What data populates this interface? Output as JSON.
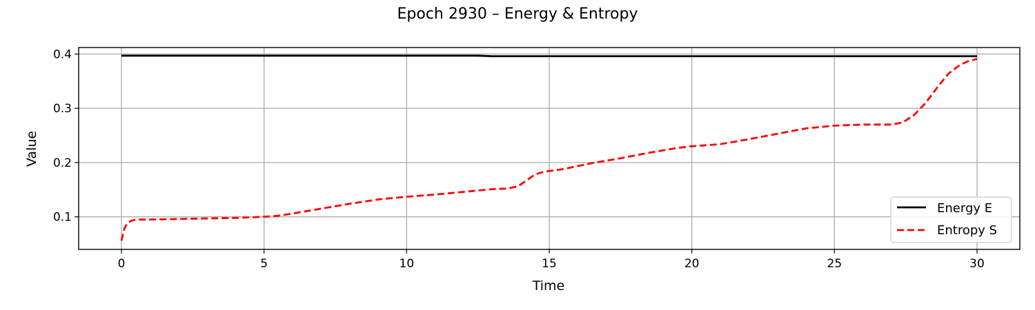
{
  "chart_data": {
    "type": "line",
    "title": "Epoch 2930 – Energy & Entropy",
    "xlabel": "Time",
    "ylabel": "Value",
    "xlim": [
      -1.5,
      31.5
    ],
    "ylim": [
      0.04,
      0.412
    ],
    "xticks": [
      0,
      5,
      10,
      15,
      20,
      25,
      30
    ],
    "yticks": [
      0.1,
      0.2,
      0.3,
      0.4
    ],
    "xtick_labels": [
      "0",
      "5",
      "10",
      "15",
      "20",
      "25",
      "30"
    ],
    "ytick_labels": [
      "0.1",
      "0.2",
      "0.3",
      "0.4"
    ],
    "grid": true,
    "legend_position": "lower right",
    "series": [
      {
        "name": "Energy E",
        "color": "#000000",
        "style": "solid",
        "x": [
          0,
          5,
          10,
          12.5,
          13,
          15,
          20,
          25,
          30
        ],
        "y": [
          0.397,
          0.397,
          0.397,
          0.397,
          0.396,
          0.396,
          0.396,
          0.396,
          0.396
        ]
      },
      {
        "name": "Entropy S",
        "color": "#ff0000",
        "style": "dashed",
        "x": [
          0,
          0.1,
          0.2,
          0.35,
          0.5,
          1,
          2,
          3,
          4,
          5,
          5.5,
          6,
          7,
          8,
          9,
          10,
          11,
          12,
          13,
          13.5,
          13.9,
          14.2,
          14.5,
          14.8,
          15.5,
          16.5,
          17.5,
          18.5,
          19.5,
          20,
          21,
          22,
          23,
          23.5,
          24,
          25,
          26,
          27,
          27.4,
          27.8,
          28.2,
          28.6,
          29,
          29.4,
          29.7,
          30
        ],
        "y": [
          0.056,
          0.078,
          0.088,
          0.093,
          0.095,
          0.095,
          0.096,
          0.097,
          0.098,
          0.1,
          0.102,
          0.106,
          0.115,
          0.124,
          0.132,
          0.137,
          0.141,
          0.146,
          0.151,
          0.152,
          0.156,
          0.167,
          0.178,
          0.183,
          0.188,
          0.199,
          0.208,
          0.218,
          0.227,
          0.23,
          0.234,
          0.243,
          0.253,
          0.258,
          0.263,
          0.268,
          0.27,
          0.27,
          0.274,
          0.288,
          0.31,
          0.338,
          0.364,
          0.38,
          0.387,
          0.391
        ]
      }
    ]
  }
}
